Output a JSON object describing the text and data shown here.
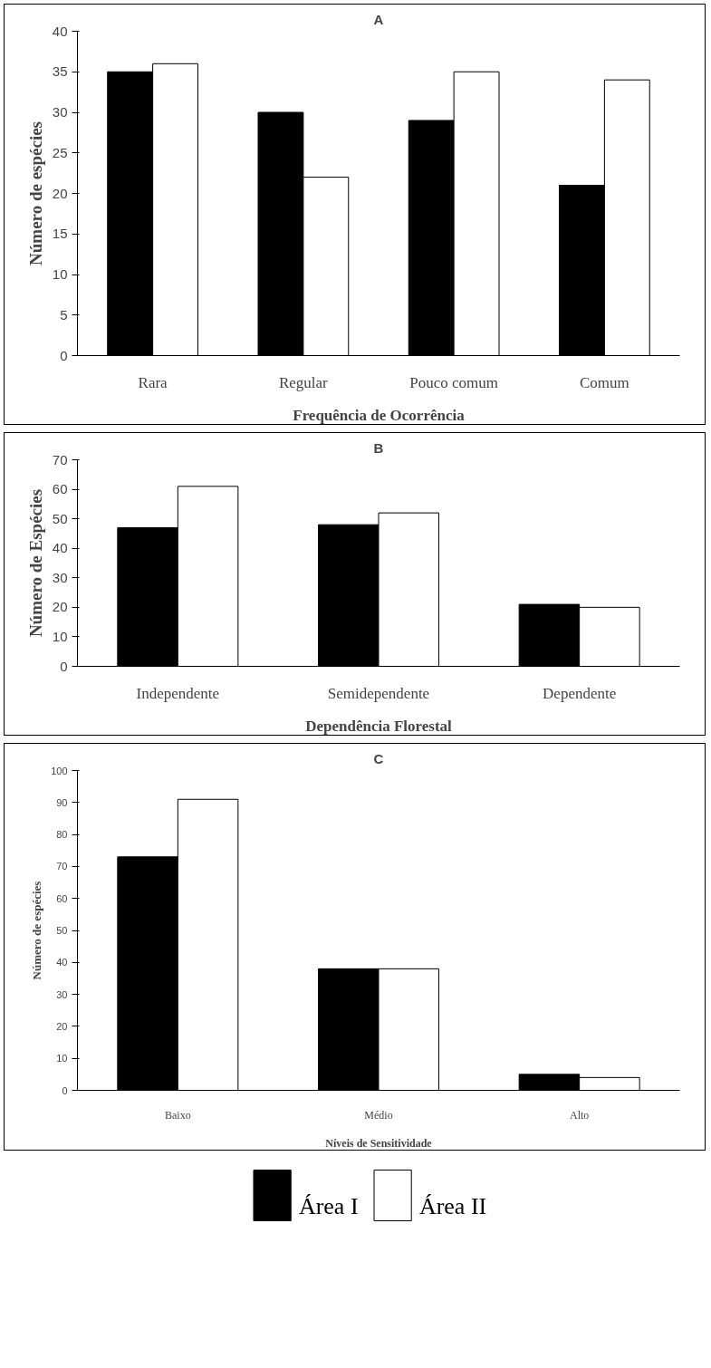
{
  "chart_data": [
    {
      "type": "bar",
      "title": "A",
      "xlabel": "Frequência de Ocorrência",
      "ylabel": "Número de espécies",
      "categories": [
        "Rara",
        "Regular",
        "Pouco comum",
        "Comum"
      ],
      "ylim": [
        0,
        40
      ],
      "yticks": [
        0,
        5,
        10,
        15,
        20,
        25,
        30,
        35,
        40
      ],
      "legend": "bottom",
      "series": [
        {
          "name": "Área I",
          "color": "#000000",
          "values": [
            35,
            30,
            29,
            21
          ]
        },
        {
          "name": "Área II",
          "color": "#ffffff",
          "values": [
            36,
            22,
            35,
            34
          ]
        }
      ]
    },
    {
      "type": "bar",
      "title": "B",
      "xlabel": "Dependência Florestal",
      "ylabel": "Número de Espécies",
      "categories": [
        "Independente",
        "Semidependente",
        "Dependente"
      ],
      "ylim": [
        0,
        70
      ],
      "yticks": [
        0,
        10,
        20,
        30,
        40,
        50,
        60,
        70
      ],
      "series": [
        {
          "color": "#000000",
          "values": [
            47,
            48,
            21
          ]
        },
        {
          "color": "#ffffff",
          "values": [
            61,
            52,
            20
          ]
        }
      ]
    },
    {
      "type": "bar",
      "title": "C",
      "xlabel": "Níveis de Sensitividade",
      "ylabel": "Número de espécies",
      "categories": [
        "Baixo",
        "Médio",
        "Alto"
      ],
      "ylim": [
        0,
        100
      ],
      "yticks": [
        0,
        10,
        20,
        30,
        40,
        50,
        60,
        70,
        80,
        90,
        100
      ],
      "series": [
        {
          "color": "#000000",
          "values": [
            73,
            38,
            5
          ]
        },
        {
          "color": "#ffffff",
          "values": [
            91,
            38,
            4
          ]
        }
      ]
    }
  ]
}
